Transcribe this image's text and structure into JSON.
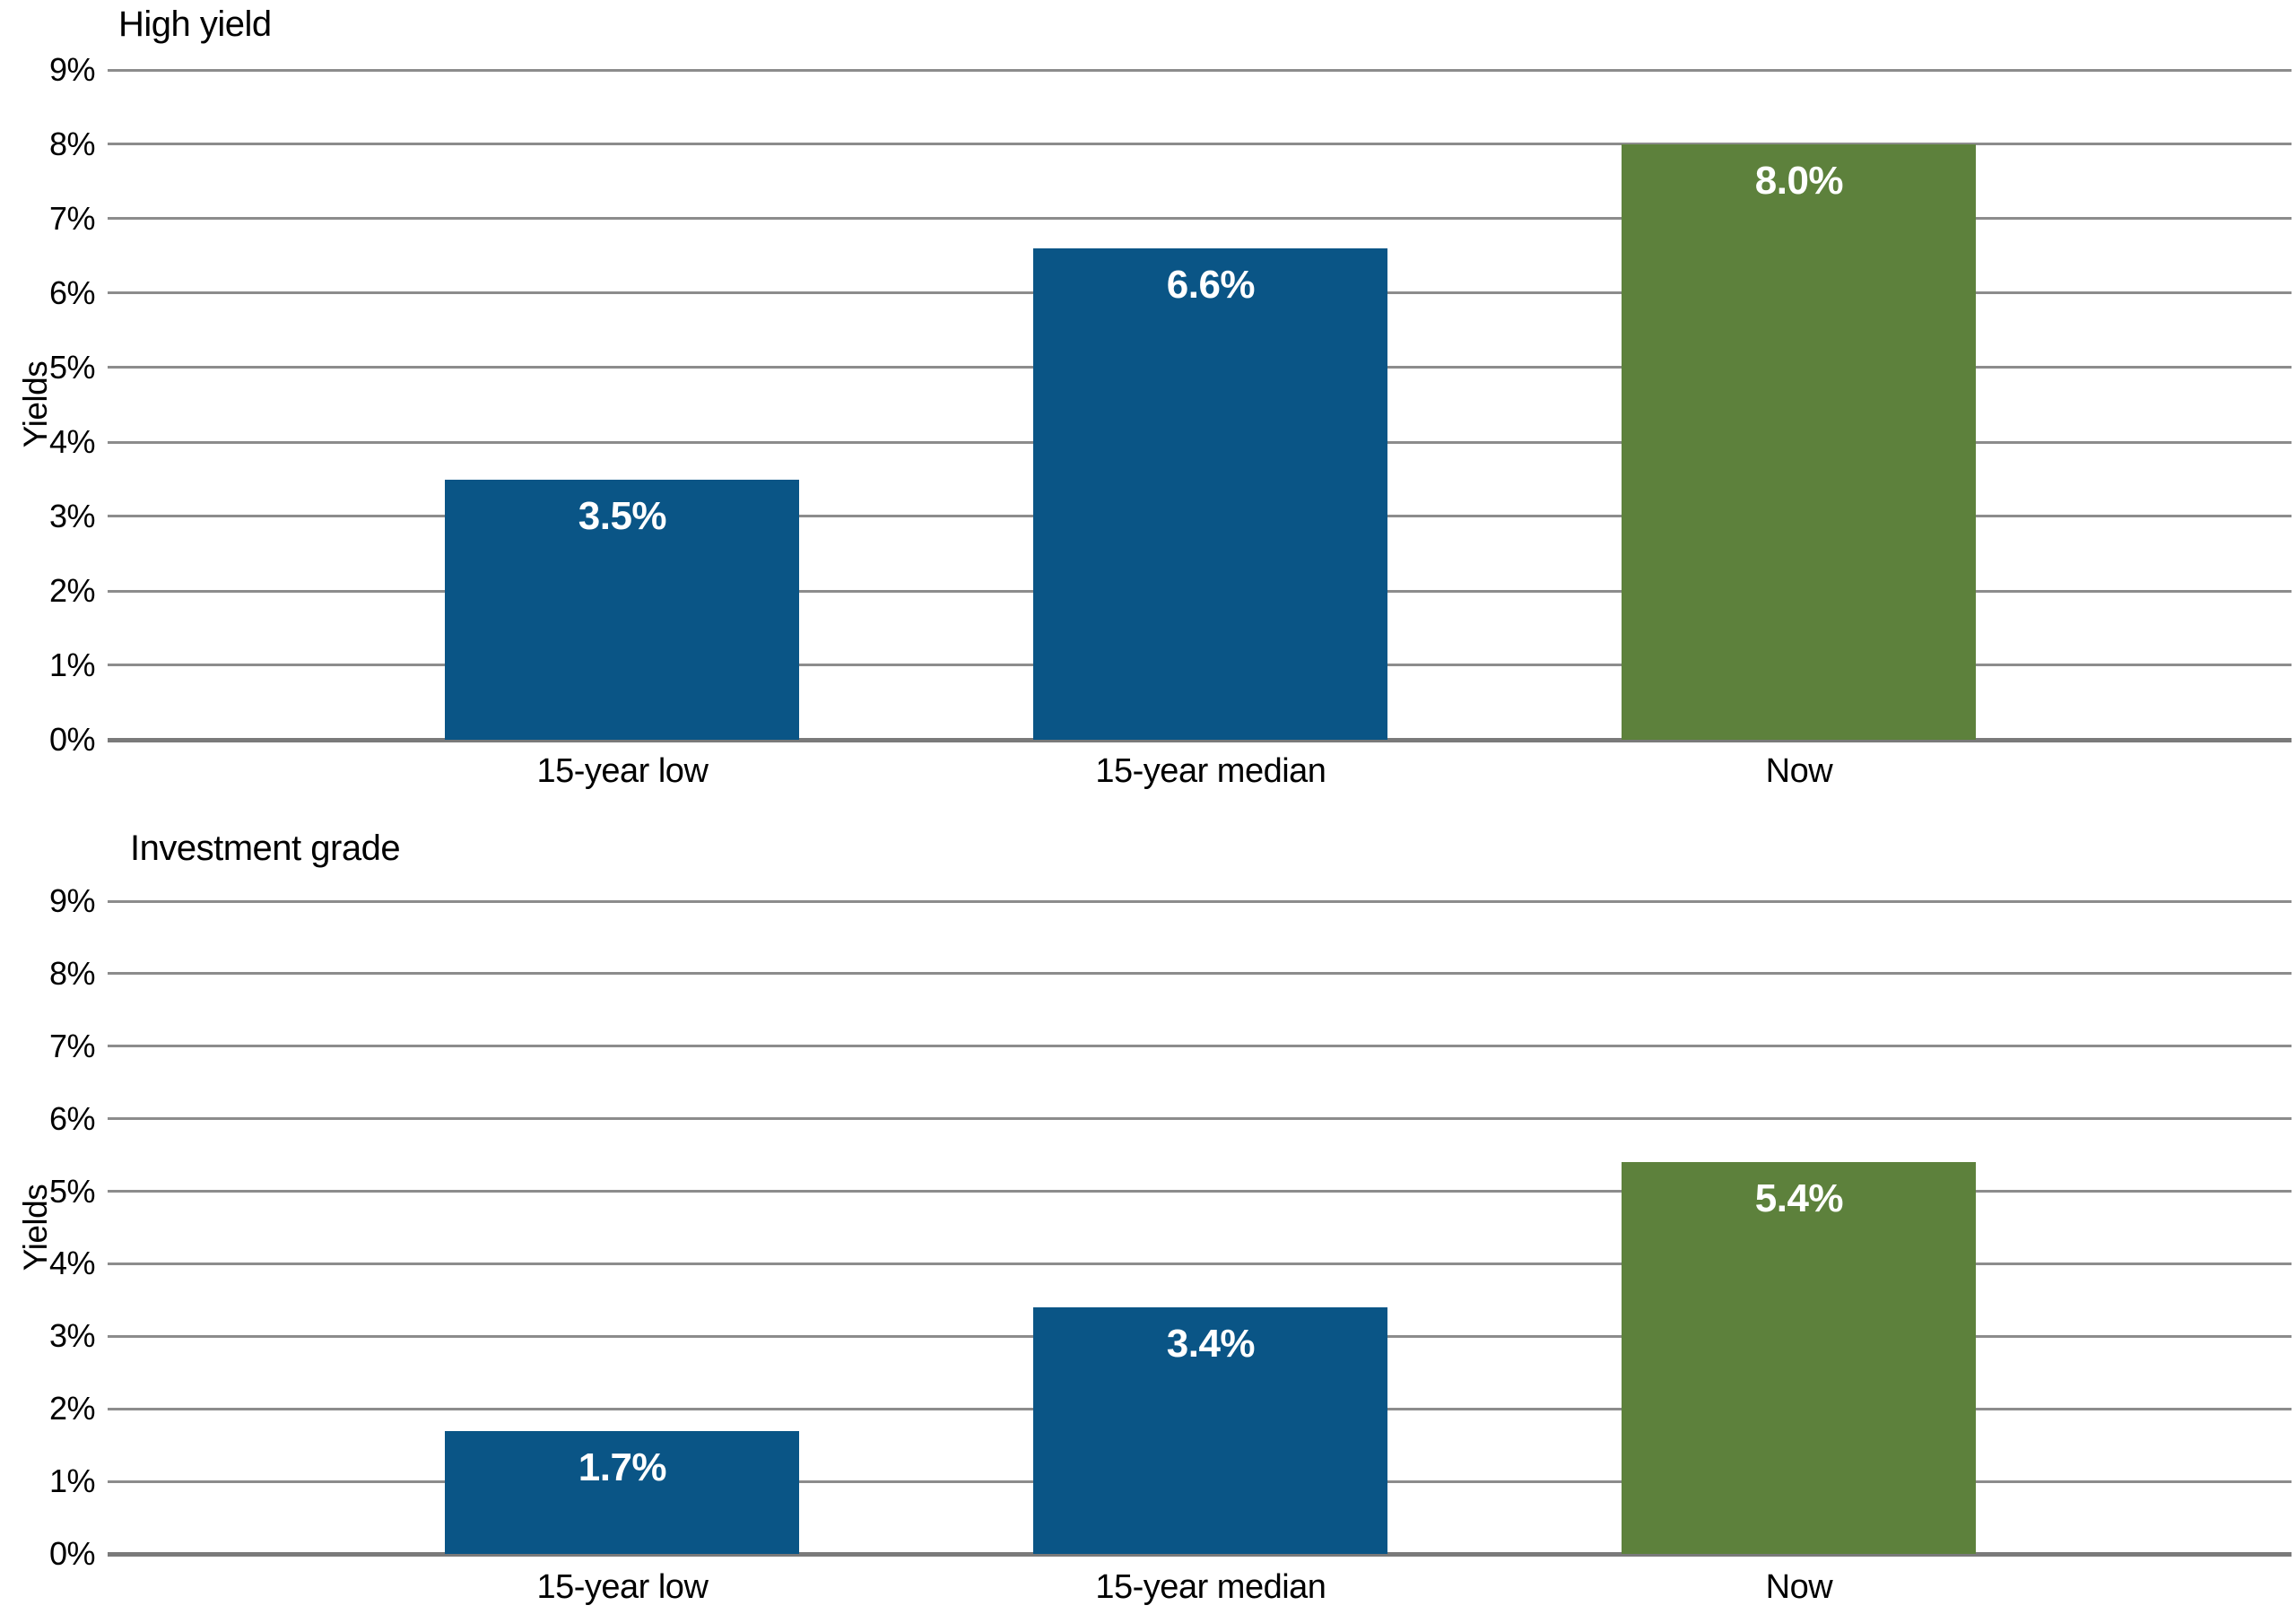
{
  "colors": {
    "bar_blue": "#0A5586",
    "bar_green": "#5D813C",
    "gridline": "#8C8C8C",
    "axis_line": "#7A7A7A",
    "text": "#000000",
    "value_label_text": "#FFFFFF",
    "background": "#FFFFFF"
  },
  "chart_data": [
    {
      "type": "bar",
      "title": "High yield",
      "ylabel": "Yields",
      "xlabel": "",
      "categories": [
        "15-year low",
        "15-year median",
        "Now"
      ],
      "values": [
        3.5,
        6.6,
        8.0
      ],
      "value_labels": [
        "3.5%",
        "6.6%",
        "8.0%"
      ],
      "bar_colors": [
        "#0A5586",
        "#0A5586",
        "#5D813C"
      ],
      "ylim": [
        0,
        9
      ],
      "ytick_labels": [
        "0%",
        "1%",
        "2%",
        "3%",
        "4%",
        "5%",
        "6%",
        "7%",
        "8%",
        "9%"
      ],
      "grid": true,
      "legend_position": "none"
    },
    {
      "type": "bar",
      "title": "Investment grade",
      "ylabel": "Yields",
      "xlabel": "",
      "categories": [
        "15-year low",
        "15-year median",
        "Now"
      ],
      "values": [
        1.7,
        3.4,
        5.4
      ],
      "value_labels": [
        "1.7%",
        "3.4%",
        "5.4%"
      ],
      "bar_colors": [
        "#0A5586",
        "#0A5586",
        "#5D813C"
      ],
      "ylim": [
        0,
        9
      ],
      "ytick_labels": [
        "0%",
        "1%",
        "2%",
        "3%",
        "4%",
        "5%",
        "6%",
        "7%",
        "8%",
        "9%"
      ],
      "grid": true,
      "legend_position": "none"
    }
  ]
}
